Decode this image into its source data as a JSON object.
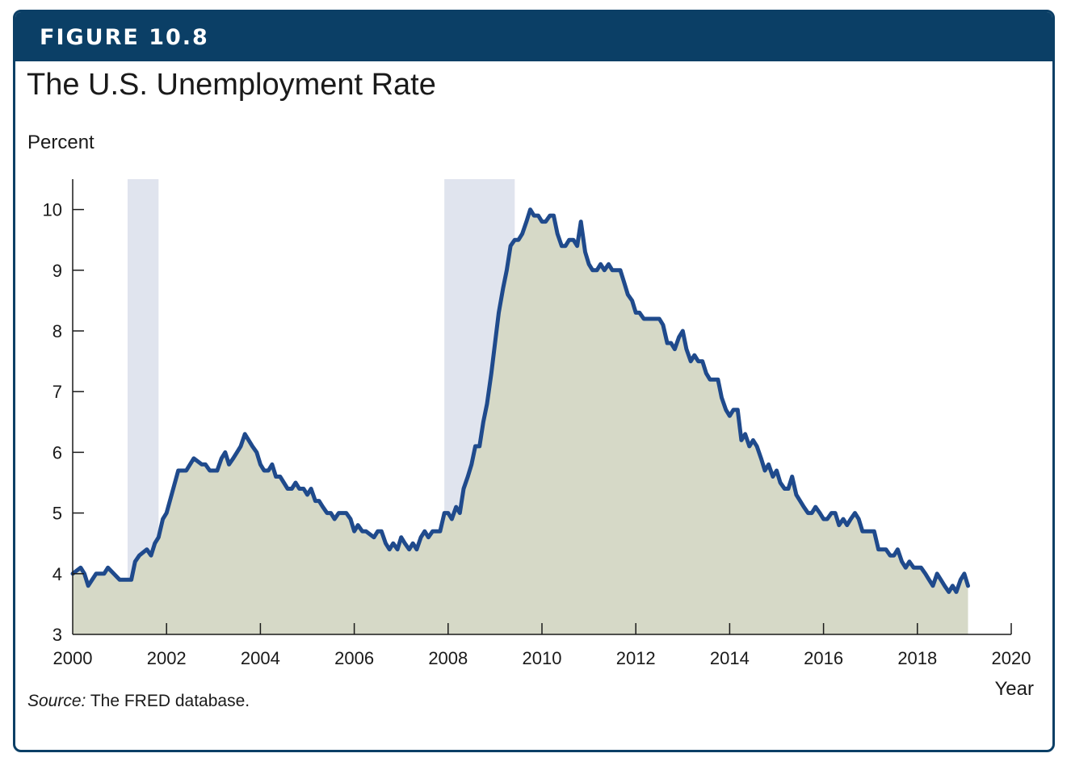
{
  "header": {
    "figure_label": "FIGURE 10.8"
  },
  "colors": {
    "banner": "#0b3f66",
    "line": "#1f4a8c",
    "area": "#d6d9c7",
    "recession": "#e0e4ee"
  },
  "source": {
    "prefix": "Source:",
    "text": " The FRED database."
  },
  "chart_data": {
    "type": "area",
    "title": "The U.S. Unemployment Rate",
    "ylabel": "Percent",
    "xlabel": "Year",
    "xlim": [
      2000,
      2020
    ],
    "ylim": [
      3,
      10.5
    ],
    "xticks": [
      2000,
      2002,
      2004,
      2006,
      2008,
      2010,
      2012,
      2014,
      2016,
      2018,
      2020
    ],
    "yticks": [
      3,
      4,
      5,
      6,
      7,
      8,
      9,
      10
    ],
    "grid": false,
    "recessions": [
      [
        2001.17,
        2001.83
      ],
      [
        2007.92,
        2009.42
      ]
    ],
    "series": [
      {
        "x": [
          2000.0,
          2000.17,
          2000.25,
          2000.33,
          2000.5,
          2000.58,
          2000.67,
          2000.75,
          2001.0,
          2001.08,
          2001.17,
          2001.25,
          2001.33,
          2001.42,
          2001.58,
          2001.67,
          2001.75,
          2001.83,
          2001.92,
          2002.0,
          2002.25,
          2002.33,
          2002.42,
          2002.58,
          2002.75,
          2002.83,
          2002.92,
          2003.0,
          2003.08,
          2003.17,
          2003.25,
          2003.33,
          2003.42,
          2003.5,
          2003.58,
          2003.67,
          2003.75,
          2003.83,
          2003.92,
          2004.0,
          2004.08,
          2004.17,
          2004.25,
          2004.33,
          2004.42,
          2004.58,
          2004.67,
          2004.75,
          2004.83,
          2004.92,
          2005.0,
          2005.08,
          2005.17,
          2005.25,
          2005.33,
          2005.42,
          2005.5,
          2005.58,
          2005.67,
          2005.75,
          2005.83,
          2005.92,
          2006.0,
          2006.08,
          2006.17,
          2006.25,
          2006.42,
          2006.5,
          2006.58,
          2006.67,
          2006.75,
          2006.83,
          2006.92,
          2007.0,
          2007.08,
          2007.17,
          2007.25,
          2007.33,
          2007.42,
          2007.5,
          2007.58,
          2007.67,
          2007.75,
          2007.83,
          2007.92,
          2008.0,
          2008.08,
          2008.17,
          2008.25,
          2008.33,
          2008.42,
          2008.5,
          2008.58,
          2008.67,
          2008.75,
          2008.83,
          2008.92,
          2009.0,
          2009.08,
          2009.17,
          2009.25,
          2009.33,
          2009.42,
          2009.5,
          2009.58,
          2009.67,
          2009.75,
          2009.83,
          2009.92,
          2010.0,
          2010.08,
          2010.17,
          2010.25,
          2010.33,
          2010.42,
          2010.5,
          2010.58,
          2010.67,
          2010.75,
          2010.83,
          2010.92,
          2011.0,
          2011.08,
          2011.17,
          2011.25,
          2011.33,
          2011.42,
          2011.5,
          2011.58,
          2011.67,
          2011.75,
          2011.83,
          2011.92,
          2012.0,
          2012.08,
          2012.17,
          2012.25,
          2012.33,
          2012.42,
          2012.5,
          2012.58,
          2012.67,
          2012.75,
          2012.83,
          2012.92,
          2013.0,
          2013.08,
          2013.17,
          2013.25,
          2013.33,
          2013.42,
          2013.5,
          2013.58,
          2013.67,
          2013.75,
          2013.83,
          2013.92,
          2014.0,
          2014.08,
          2014.17,
          2014.25,
          2014.33,
          2014.42,
          2014.5,
          2014.58,
          2014.67,
          2014.75,
          2014.83,
          2014.92,
          2015.0,
          2015.08,
          2015.17,
          2015.25,
          2015.33,
          2015.42,
          2015.5,
          2015.58,
          2015.67,
          2015.75,
          2015.83,
          2015.92,
          2016.0,
          2016.08,
          2016.17,
          2016.25,
          2016.33,
          2016.42,
          2016.5,
          2016.58,
          2016.67,
          2016.75,
          2016.83,
          2016.92,
          2017.0,
          2017.08,
          2017.17,
          2017.25,
          2017.33,
          2017.42,
          2017.5,
          2017.58,
          2017.67,
          2017.75,
          2017.83,
          2017.92,
          2018.0,
          2018.08,
          2018.17,
          2018.25,
          2018.33,
          2018.42,
          2018.5,
          2018.58,
          2018.67,
          2018.75,
          2018.83,
          2018.92,
          2019.0,
          2019.08
        ],
        "y": [
          4.0,
          4.1,
          4.0,
          3.8,
          4.0,
          4.0,
          4.0,
          4.1,
          3.9,
          3.9,
          3.9,
          3.9,
          4.2,
          4.3,
          4.4,
          4.3,
          4.5,
          4.6,
          4.9,
          5.0,
          5.7,
          5.7,
          5.7,
          5.9,
          5.8,
          5.8,
          5.7,
          5.7,
          5.7,
          5.9,
          6.0,
          5.8,
          5.9,
          6.0,
          6.1,
          6.3,
          6.2,
          6.1,
          6.0,
          5.8,
          5.7,
          5.7,
          5.8,
          5.6,
          5.6,
          5.4,
          5.4,
          5.5,
          5.4,
          5.4,
          5.3,
          5.4,
          5.2,
          5.2,
          5.1,
          5.0,
          5.0,
          4.9,
          5.0,
          5.0,
          5.0,
          4.9,
          4.7,
          4.8,
          4.7,
          4.7,
          4.6,
          4.7,
          4.7,
          4.5,
          4.4,
          4.5,
          4.4,
          4.6,
          4.5,
          4.4,
          4.5,
          4.4,
          4.6,
          4.7,
          4.6,
          4.7,
          4.7,
          4.7,
          5.0,
          5.0,
          4.9,
          5.1,
          5.0,
          5.4,
          5.6,
          5.8,
          6.1,
          6.1,
          6.5,
          6.8,
          7.3,
          7.8,
          8.3,
          8.7,
          9.0,
          9.4,
          9.5,
          9.5,
          9.6,
          9.8,
          10.0,
          9.9,
          9.9,
          9.8,
          9.8,
          9.9,
          9.9,
          9.6,
          9.4,
          9.4,
          9.5,
          9.5,
          9.4,
          9.8,
          9.3,
          9.1,
          9.0,
          9.0,
          9.1,
          9.0,
          9.1,
          9.0,
          9.0,
          9.0,
          8.8,
          8.6,
          8.5,
          8.3,
          8.3,
          8.2,
          8.2,
          8.2,
          8.2,
          8.2,
          8.1,
          7.8,
          7.8,
          7.7,
          7.9,
          8.0,
          7.7,
          7.5,
          7.6,
          7.5,
          7.5,
          7.3,
          7.2,
          7.2,
          7.2,
          6.9,
          6.7,
          6.6,
          6.7,
          6.7,
          6.2,
          6.3,
          6.1,
          6.2,
          6.1,
          5.9,
          5.7,
          5.8,
          5.6,
          5.7,
          5.5,
          5.4,
          5.4,
          5.6,
          5.3,
          5.2,
          5.1,
          5.0,
          5.0,
          5.1,
          5.0,
          4.9,
          4.9,
          5.0,
          5.0,
          4.8,
          4.9,
          4.8,
          4.9,
          5.0,
          4.9,
          4.7,
          4.7,
          4.7,
          4.7,
          4.4,
          4.4,
          4.4,
          4.3,
          4.3,
          4.4,
          4.2,
          4.1,
          4.2,
          4.1,
          4.1,
          4.1,
          4.0,
          3.9,
          3.8,
          4.0,
          3.9,
          3.8,
          3.7,
          3.8,
          3.7,
          3.9,
          4.0,
          3.8
        ]
      }
    ]
  }
}
